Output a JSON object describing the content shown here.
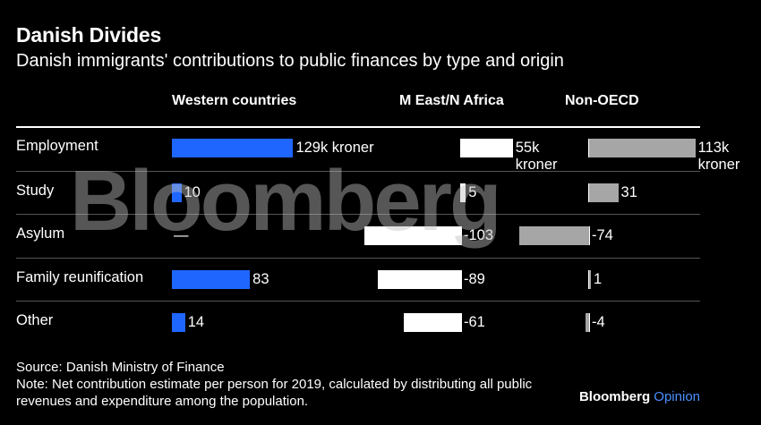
{
  "title": "Danish Divides",
  "subtitle": "Danish immigrants' contributions to public finances by type and origin",
  "watermark": "Bloomberg",
  "footer": {
    "source": "Source: Danish Ministry of Finance",
    "note": "Note: Net contribution estimate per person for 2019, calculated by distributing all public revenues and expenditure among the population.",
    "brand": "Bloomberg",
    "brand_suffix": "Opinion"
  },
  "colors": {
    "western": "#1f66ff",
    "mena": "#ffffff",
    "nonoecd": "#a6a6a6",
    "background": "#000000"
  },
  "chart_data": {
    "type": "bar",
    "unit": "thousand kroner",
    "categories": [
      "Employment",
      "Study",
      "Asylum",
      "Family reunification",
      "Other"
    ],
    "series": [
      {
        "name": "Western countries",
        "values": [
          129,
          10,
          null,
          83,
          14
        ],
        "labels": [
          "129k kroner",
          "10",
          "—",
          "83",
          "14"
        ]
      },
      {
        "name": "M East/N Africa",
        "values": [
          55,
          5,
          -103,
          -89,
          -61
        ],
        "labels": [
          "55k kroner",
          "5",
          "-103",
          "-89",
          "-61"
        ]
      },
      {
        "name": "Non-OECD",
        "values": [
          113,
          31,
          -74,
          1,
          -4
        ],
        "labels": [
          "113k kroner",
          "31",
          "-74",
          "1",
          "-4"
        ]
      }
    ]
  }
}
